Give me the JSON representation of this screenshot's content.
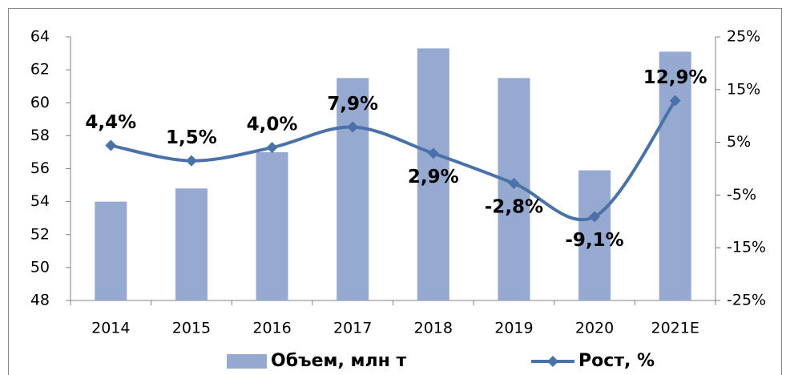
{
  "chart_data": {
    "type": "bar_line",
    "categories": [
      "2014",
      "2015",
      "2016",
      "2017",
      "2018",
      "2019",
      "2020",
      "2021E"
    ],
    "series": [
      {
        "name": "Объем, млн т",
        "type": "bar",
        "color": "#95a9d1",
        "values": [
          54,
          54.8,
          57,
          61.5,
          63.3,
          61.5,
          55.9,
          63.1
        ]
      },
      {
        "name": "Рост, %",
        "type": "line",
        "axis": "y2",
        "color": "#4a72a8",
        "values": [
          4.4,
          1.5,
          4.0,
          7.9,
          2.9,
          -2.8,
          -9.1,
          12.9
        ],
        "value_labels": [
          "4,4%",
          "1,5%",
          "4,0%",
          "7,9%",
          "2,9%",
          "-2,8%",
          "-9,1%",
          "12,9%"
        ]
      }
    ],
    "ylim": [
      48,
      64
    ],
    "yticks": [
      48,
      50,
      52,
      54,
      56,
      58,
      60,
      62,
      64
    ],
    "y2lim": [
      -25,
      25
    ],
    "y2ticks": [
      {
        "value": -25,
        "label": "-25%"
      },
      {
        "value": -15,
        "label": "-15%"
      },
      {
        "value": -5,
        "label": "-5%"
      },
      {
        "value": 5,
        "label": "5%"
      },
      {
        "value": 15,
        "label": "15%"
      },
      {
        "value": 25,
        "label": "25%"
      }
    ],
    "legend": "bottom"
  }
}
